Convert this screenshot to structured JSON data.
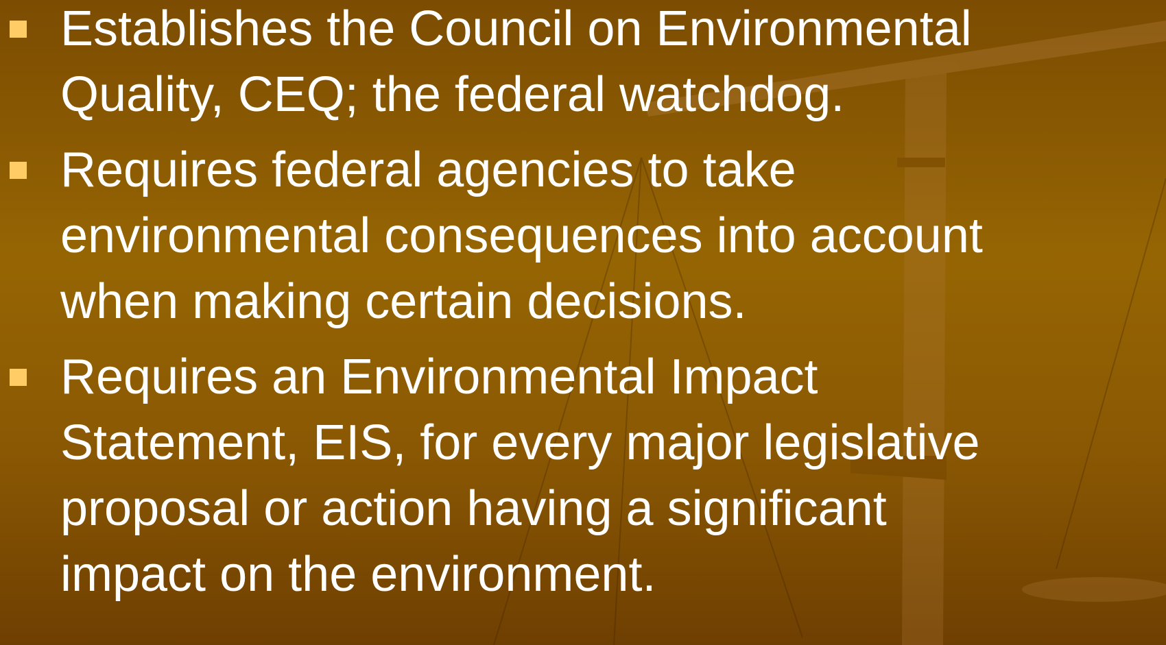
{
  "bullets": [
    {
      "lines": [
        "Establishes the Council on Environmental",
        "Quality, CEQ; the federal watchdog."
      ]
    },
    {
      "lines": [
        "Requires federal agencies to take",
        "environmental consequences into account",
        "when making certain decisions."
      ]
    },
    {
      "lines": [
        "Requires an Environmental Impact",
        "Statement, EIS, for every major legislative",
        "proposal or action having a significant",
        "impact on the environment."
      ]
    }
  ]
}
